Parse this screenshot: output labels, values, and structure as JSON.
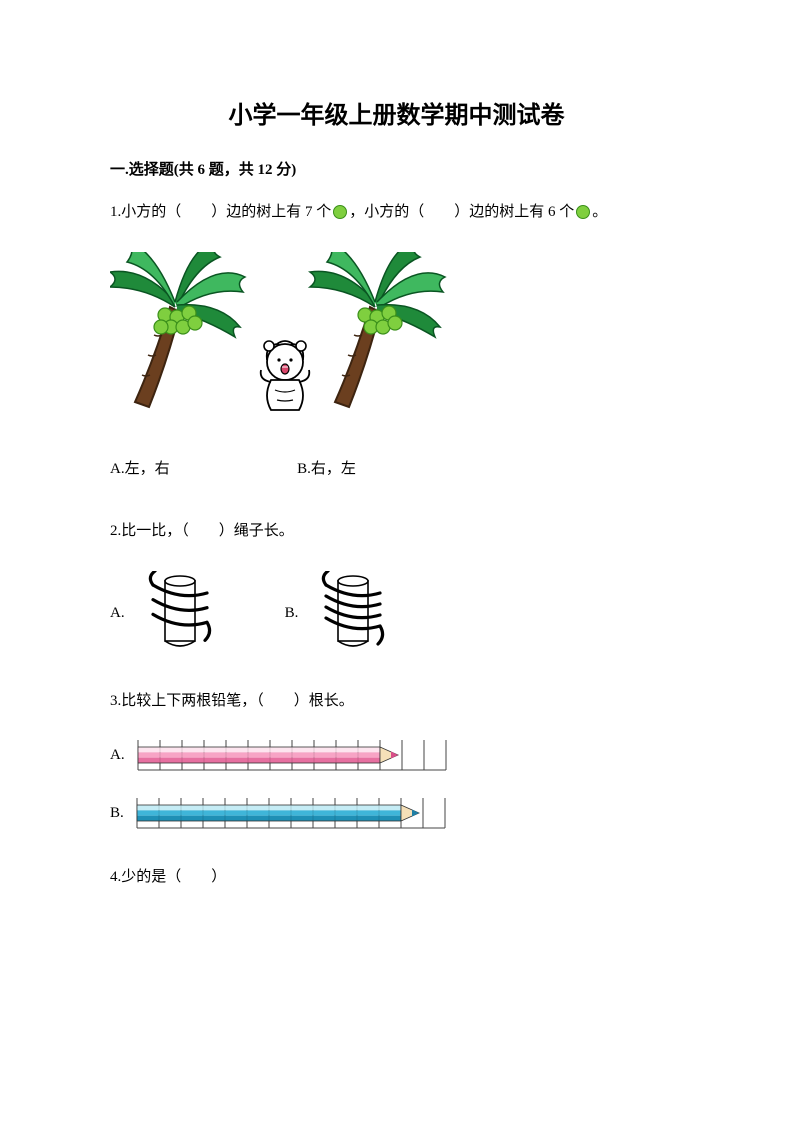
{
  "title": "小学一年级上册数学期中测试卷",
  "section1": {
    "heading": "一.选择题(共 6 题，共 12 分)",
    "q1": {
      "text_a": "1.小方的（　　）边的树上有 7 个",
      "text_b": "，小方的（　　）边的树上有 6 个",
      "text_c": "。",
      "optA": "A.左，右",
      "optB": "B.右，左",
      "colors": {
        "circle_fill": "#7fcf3f",
        "circle_stroke": "#3a8f1a",
        "leaf_dark": "#1f8a3a",
        "leaf_light": "#3fb85f",
        "trunk": "#6b3f1f",
        "trunk_line": "#3d2410",
        "girl_outline": "#000000",
        "girl_fill": "#ffffff",
        "girl_mouth": "#d9466b"
      }
    },
    "q2": {
      "text": "2.比一比，（　　）绳子长。",
      "optA": "A.",
      "optB": "B.",
      "colors": {
        "cyl_fill": "#ffffff",
        "cyl_stroke": "#000000",
        "rope": "#000000"
      }
    },
    "q3": {
      "text": "3.比较上下两根铅笔，（　　）根长。",
      "labelA": "A.",
      "labelB": "B.",
      "pencilA": {
        "body_fill": "#f7a4c5",
        "body_top": "#fde5ef",
        "body_bot": "#e670a0",
        "segments": 11,
        "tip_wood": "#f5e0b8",
        "tip_lead": "#d94f8a"
      },
      "pencilB": {
        "body_fill": "#3fb5d9",
        "body_top": "#c5ecf5",
        "body_bot": "#1f8fb5",
        "segments": 12,
        "tip_wood": "#f5e0b8",
        "tip_lead": "#1f7fa5"
      },
      "ruler_stroke": "#444444",
      "total_ticks": 14
    },
    "q4": {
      "text": "4.少的是（　　）"
    }
  }
}
